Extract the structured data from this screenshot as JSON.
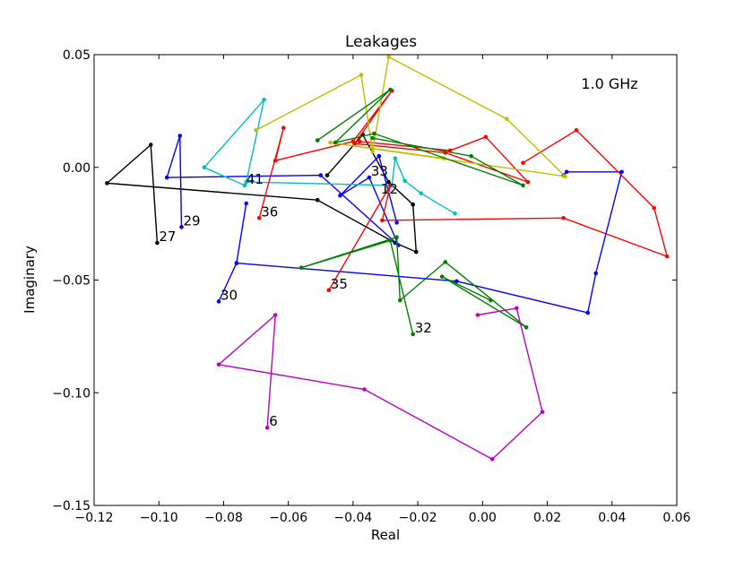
{
  "chart_data": {
    "type": "line",
    "title": "Leakages",
    "xlabel": "Real",
    "ylabel": "Imaginary",
    "xlim": [
      -0.12,
      0.06
    ],
    "ylim": [
      -0.15,
      0.05
    ],
    "xticks": [
      "−0.12",
      "−0.10",
      "−0.08",
      "−0.06",
      "−0.04",
      "−0.02",
      "0.00",
      "0.02",
      "0.04",
      "0.06"
    ],
    "yticks": [
      "−0.15",
      "−0.10",
      "−0.05",
      "0.00",
      "0.05"
    ],
    "xtick_values": [
      -0.12,
      -0.1,
      -0.08,
      -0.06,
      -0.04,
      -0.02,
      0.0,
      0.02,
      0.04,
      0.06
    ],
    "ytick_values": [
      -0.15,
      -0.1,
      -0.05,
      0.0,
      0.05
    ],
    "grid": false,
    "annotation": "1.0 GHz",
    "series": [
      {
        "color": "#000000",
        "label": "27",
        "points": [
          [
            -0.1005,
            -0.0335
          ],
          [
            -0.1025,
            0.01
          ],
          [
            -0.116,
            -0.007
          ],
          [
            -0.051,
            -0.0145
          ],
          [
            -0.027,
            -0.0335
          ],
          [
            -0.0205,
            -0.0375
          ],
          [
            -0.0215,
            -0.0165
          ],
          [
            -0.029,
            -0.0065
          ],
          [
            -0.037,
            0.0145
          ],
          [
            -0.048,
            -0.0035
          ]
        ]
      },
      {
        "color": "#0000ff",
        "label": "29",
        "points": [
          [
            -0.093,
            -0.0265
          ],
          [
            -0.0935,
            0.014
          ],
          [
            -0.0975,
            -0.0045
          ],
          [
            -0.05,
            -0.0035
          ],
          [
            -0.026,
            -0.0345
          ],
          [
            -0.035,
            -0.0045
          ],
          [
            -0.044,
            -0.0125
          ],
          [
            -0.032,
            0.005
          ],
          [
            -0.0265,
            -0.0245
          ]
        ]
      },
      {
        "color": "#0000ff",
        "label": "30",
        "points": [
          [
            -0.0815,
            -0.0595
          ],
          [
            -0.076,
            -0.0425
          ],
          [
            -0.073,
            -0.016
          ],
          [
            -0.076,
            -0.0425
          ],
          [
            -0.008,
            -0.0505
          ],
          [
            0.0325,
            -0.0645
          ],
          [
            0.035,
            -0.047
          ],
          [
            0.043,
            -0.002
          ],
          [
            0.026,
            -0.002
          ],
          [
            0.025,
            -0.0035
          ]
        ]
      },
      {
        "color": "#00bfbf",
        "label": "41",
        "points": [
          [
            -0.0735,
            -0.008
          ],
          [
            -0.086,
            0.0
          ],
          [
            -0.0675,
            0.03
          ],
          [
            -0.073,
            -0.0065
          ],
          [
            -0.028,
            -0.008
          ],
          [
            -0.027,
            0.004
          ],
          [
            -0.024,
            -0.006
          ],
          [
            -0.019,
            -0.0115
          ],
          [
            -0.0085,
            -0.0205
          ]
        ]
      },
      {
        "color": "#ff0000",
        "label": "36",
        "points": [
          [
            -0.069,
            -0.0225
          ],
          [
            -0.0615,
            0.0175
          ],
          [
            -0.064,
            0.003
          ],
          [
            -0.04,
            0.0115
          ],
          [
            -0.028,
            0.034
          ],
          [
            -0.0395,
            0.0105
          ],
          [
            -0.0115,
            0.0065
          ],
          [
            0.014,
            -0.0065
          ],
          [
            0.001,
            0.0135
          ],
          [
            -0.01,
            0.0075
          ],
          [
            -0.038,
            0.0115
          ]
        ]
      },
      {
        "color": "#ff0000",
        "label": "35",
        "points": [
          [
            -0.0475,
            -0.0545
          ],
          [
            -0.0285,
            -0.008
          ],
          [
            -0.031,
            -0.0235
          ],
          [
            0.025,
            -0.0225
          ],
          [
            0.057,
            -0.0395
          ],
          [
            0.053,
            -0.018
          ],
          [
            0.029,
            0.0165
          ],
          [
            0.0125,
            0.002
          ]
        ]
      },
      {
        "color": "#bfbf00",
        "label": "",
        "points": [
          [
            -0.07,
            0.0165
          ],
          [
            -0.0375,
            0.041
          ],
          [
            -0.034,
            0.007
          ],
          [
            -0.029,
            0.049
          ],
          [
            0.0075,
            0.0215
          ],
          [
            0.0255,
            -0.004
          ],
          [
            -0.047,
            0.011
          ],
          [
            -0.012,
            0.004
          ]
        ]
      },
      {
        "color": "#008000",
        "label": "",
        "points": [
          [
            -0.051,
            0.012
          ],
          [
            -0.0285,
            0.0345
          ],
          [
            -0.0455,
            0.011
          ],
          [
            -0.0335,
            0.015
          ],
          [
            0.0125,
            -0.008
          ],
          [
            -0.0035,
            0.005
          ],
          [
            -0.034,
            0.013
          ]
        ]
      },
      {
        "color": "#008000",
        "label": "32",
        "points": [
          [
            -0.0215,
            -0.074
          ],
          [
            -0.0285,
            -0.0325
          ],
          [
            -0.056,
            -0.0445
          ],
          [
            -0.0265,
            -0.031
          ],
          [
            -0.0255,
            -0.059
          ],
          [
            -0.0115,
            -0.042
          ],
          [
            0.0135,
            -0.071
          ],
          [
            -0.0125,
            -0.0485
          ],
          [
            0.0025,
            -0.059
          ]
        ]
      },
      {
        "color": "#bf00bf",
        "label": "6",
        "points": [
          [
            -0.0665,
            -0.1155
          ],
          [
            -0.064,
            -0.0655
          ],
          [
            -0.0815,
            -0.0875
          ],
          [
            -0.0365,
            -0.0985
          ],
          [
            0.003,
            -0.1295
          ],
          [
            0.0185,
            -0.1085
          ],
          [
            0.0105,
            -0.0625
          ],
          [
            -0.0015,
            -0.0655
          ]
        ]
      }
    ],
    "point_labels": [
      {
        "text": "27",
        "x": -0.1005,
        "y": -0.0335
      },
      {
        "text": "29",
        "x": -0.093,
        "y": -0.0265
      },
      {
        "text": "30",
        "x": -0.0815,
        "y": -0.0595
      },
      {
        "text": "41",
        "x": -0.0735,
        "y": -0.008
      },
      {
        "text": "36",
        "x": -0.069,
        "y": -0.0225
      },
      {
        "text": "35",
        "x": -0.0475,
        "y": -0.0545
      },
      {
        "text": "33",
        "x": -0.035,
        "y": -0.0045
      },
      {
        "text": "12",
        "x": -0.032,
        "y": -0.0125
      },
      {
        "text": "32",
        "x": -0.0215,
        "y": -0.074
      },
      {
        "text": "6",
        "x": -0.0665,
        "y": -0.1155
      }
    ]
  }
}
